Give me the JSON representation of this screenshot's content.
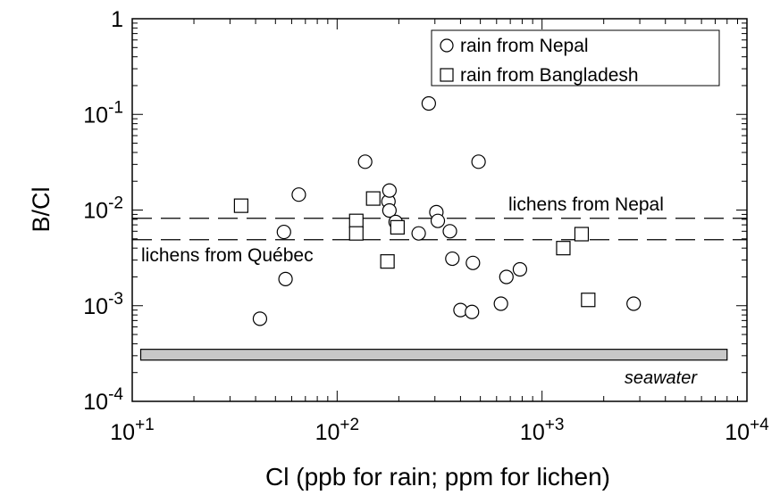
{
  "chart_data": {
    "type": "scatter",
    "title": "",
    "xlabel": "Cl (ppb for rain; ppm for lichen)",
    "ylabel": "B/Cl",
    "xscale": "log",
    "yscale": "log",
    "xlim": [
      10,
      10000
    ],
    "ylim": [
      0.0001,
      1
    ],
    "x_tick_labels": [
      {
        "base": "10",
        "exp": "+1",
        "value": 10
      },
      {
        "base": "10",
        "exp": "+2",
        "value": 100
      },
      {
        "base": "10",
        "exp": "+3",
        "value": 1000
      },
      {
        "base": "10",
        "exp": "+4",
        "value": 10000
      }
    ],
    "y_tick_labels": [
      {
        "base": "10",
        "exp": "-4",
        "value": 0.0001
      },
      {
        "base": "10",
        "exp": "-3",
        "value": 0.001
      },
      {
        "base": "10",
        "exp": "-2",
        "value": 0.01
      },
      {
        "base": "10",
        "exp": "-1",
        "value": 0.1
      },
      {
        "base": "1",
        "exp": "",
        "value": 1
      }
    ],
    "legend_position": "top-right",
    "series": [
      {
        "name": "rain from Nepal",
        "marker": "circle",
        "points": [
          {
            "x": 42,
            "y": 0.00073
          },
          {
            "x": 55,
            "y": 0.0059
          },
          {
            "x": 56,
            "y": 0.0019
          },
          {
            "x": 65,
            "y": 0.0145
          },
          {
            "x": 137,
            "y": 0.032
          },
          {
            "x": 178,
            "y": 0.0123
          },
          {
            "x": 180,
            "y": 0.016
          },
          {
            "x": 180,
            "y": 0.0099
          },
          {
            "x": 193,
            "y": 0.0075
          },
          {
            "x": 250,
            "y": 0.0057
          },
          {
            "x": 280,
            "y": 0.13
          },
          {
            "x": 305,
            "y": 0.0095
          },
          {
            "x": 310,
            "y": 0.0077
          },
          {
            "x": 355,
            "y": 0.006
          },
          {
            "x": 365,
            "y": 0.0031
          },
          {
            "x": 400,
            "y": 0.0009
          },
          {
            "x": 455,
            "y": 0.00086
          },
          {
            "x": 460,
            "y": 0.0028
          },
          {
            "x": 490,
            "y": 0.032
          },
          {
            "x": 630,
            "y": 0.00105
          },
          {
            "x": 670,
            "y": 0.002
          },
          {
            "x": 780,
            "y": 0.0024
          },
          {
            "x": 2800,
            "y": 0.00105
          }
        ]
      },
      {
        "name": "rain from Bangladesh",
        "marker": "square",
        "points": [
          {
            "x": 34,
            "y": 0.0111
          },
          {
            "x": 124,
            "y": 0.0077
          },
          {
            "x": 124,
            "y": 0.0057
          },
          {
            "x": 150,
            "y": 0.0132
          },
          {
            "x": 197,
            "y": 0.0066
          },
          {
            "x": 176,
            "y": 0.0029
          },
          {
            "x": 1270,
            "y": 0.004
          },
          {
            "x": 1560,
            "y": 0.0056
          },
          {
            "x": 1680,
            "y": 0.00115
          }
        ]
      }
    ],
    "reference_lines": [
      {
        "label": "lichens from Nepal",
        "y": 0.0082,
        "style": "dashed"
      },
      {
        "label": "lichens from  Québec",
        "y": 0.0049,
        "style": "dashed"
      }
    ],
    "reference_band": {
      "label": "seawater",
      "y_low": 0.00027,
      "y_high": 0.00035,
      "x_low": 11,
      "x_high": 8000,
      "color": "#c8c8c8"
    }
  }
}
